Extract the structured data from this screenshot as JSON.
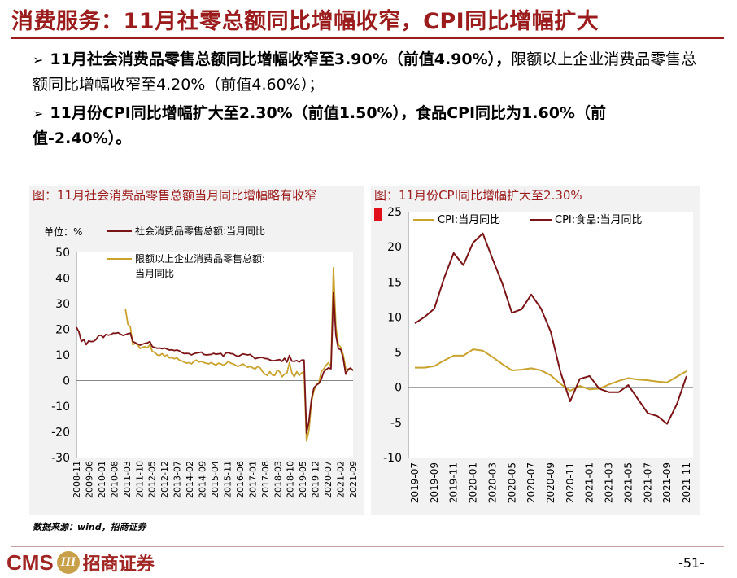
{
  "header": {
    "title": "消费服务：11月社零总额同比增幅收窄，CPI同比增幅扩大"
  },
  "bullets": [
    {
      "arrow": "➢",
      "bold": "11月社会消费品零售总额同比增幅收窄至3.90%（前值4.90%），",
      "normal": "限额以上企业消费品零售总额同比增幅收窄至4.20%（前值4.60%）；"
    },
    {
      "arrow": "➢",
      "bold": "11月份CPI同比增幅扩大至2.30%（前值1.50%），食品CPI同比为1.60%（前值-2.40%）。",
      "normal": ""
    }
  ],
  "chart_data": [
    {
      "type": "line",
      "title": "图：11月社会消费品零售总额当月同比增幅略有收窄",
      "unit_label": "单位：%",
      "ylim": [
        -30,
        50
      ],
      "yticks": [
        -30,
        -20,
        -10,
        0,
        10,
        20,
        30,
        40,
        50
      ],
      "xticks": [
        "2008-11",
        "2009-06",
        "2010-01",
        "2010-08",
        "2011-03",
        "2011-10",
        "2012-05",
        "2012-12",
        "2013-07",
        "2014-02",
        "2014-09",
        "2015-04",
        "2015-11",
        "2016-06",
        "2017-01",
        "2017-08",
        "2018-03",
        "2018-10",
        "2019-05",
        "2019-12",
        "2020-07",
        "2021-02",
        "2021-09"
      ],
      "series": [
        {
          "name": "社会消费品零售总额:当月同比",
          "color": "#7b1416",
          "points": [
            [
              0,
              20.8
            ],
            [
              1,
              19.0
            ],
            [
              2,
              15.2
            ],
            [
              3,
              16.0
            ],
            [
              4,
              14.0
            ],
            [
              5,
              15.5
            ],
            [
              6,
              15.2
            ],
            [
              7,
              15.3
            ],
            [
              8,
              16.0
            ],
            [
              9,
              17.5
            ],
            [
              10,
              17.7
            ],
            [
              11,
              16.8
            ],
            [
              12,
              18.0
            ],
            [
              13,
              17.7
            ],
            [
              14,
              17.9
            ],
            [
              15,
              18.5
            ],
            [
              16,
              18.4
            ],
            [
              17,
              18.7
            ],
            [
              18,
              18.1
            ],
            [
              19,
              17.6
            ],
            [
              20,
              17.9
            ],
            [
              21,
              18.3
            ],
            [
              22,
              18.5
            ],
            [
              23,
              15.2
            ],
            [
              24,
              14.8
            ],
            [
              25,
              14.3
            ],
            [
              26,
              13.8
            ],
            [
              27,
              14.2
            ],
            [
              28,
              14.5
            ],
            [
              29,
              14.7
            ],
            [
              30,
              15.2
            ],
            [
              31,
              13.2
            ],
            [
              32,
              12.9
            ],
            [
              33,
              12.6
            ],
            [
              34,
              12.7
            ],
            [
              35,
              12.4
            ],
            [
              36,
              12.7
            ],
            [
              37,
              12.3
            ],
            [
              38,
              11.9
            ],
            [
              39,
              12.0
            ],
            [
              40,
              11.7
            ],
            [
              41,
              11.9
            ],
            [
              42,
              11.6
            ],
            [
              43,
              11.0
            ],
            [
              44,
              10.5
            ],
            [
              45,
              10.6
            ],
            [
              46,
              10.5
            ],
            [
              47,
              10.0
            ],
            [
              48,
              10.5
            ],
            [
              49,
              10.7
            ],
            [
              50,
              10.9
            ],
            [
              51,
              11.1
            ],
            [
              52,
              10.2
            ],
            [
              53,
              10.0
            ],
            [
              54,
              10.1
            ],
            [
              55,
              10.2
            ],
            [
              56,
              10.6
            ],
            [
              57,
              10.3
            ],
            [
              58,
              10.4
            ],
            [
              59,
              10.6
            ],
            [
              60,
              9.5
            ],
            [
              61,
              10.7
            ],
            [
              62,
              10.9
            ],
            [
              63,
              10.5
            ],
            [
              64,
              10.4
            ],
            [
              65,
              9.8
            ],
            [
              66,
              9.4
            ],
            [
              67,
              9.9
            ],
            [
              68,
              10.4
            ],
            [
              69,
              10.2
            ],
            [
              70,
              10.0
            ],
            [
              71,
              10.2
            ],
            [
              72,
              9.4
            ],
            [
              73,
              8.5
            ],
            [
              74,
              8.8
            ],
            [
              75,
              9.0
            ],
            [
              76,
              9.0
            ],
            [
              77,
              8.6
            ],
            [
              78,
              8.5
            ],
            [
              79,
              8.1
            ],
            [
              80,
              7.7
            ],
            [
              81,
              7.8
            ],
            [
              82,
              8.0
            ],
            [
              83,
              8.2
            ],
            [
              84,
              7.5
            ],
            [
              85,
              8.7
            ],
            [
              86,
              7.2
            ],
            [
              87,
              9.8
            ],
            [
              88,
              7.6
            ],
            [
              89,
              7.5
            ],
            [
              90,
              7.8
            ],
            [
              91,
              7.2
            ],
            [
              92,
              8.0
            ],
            [
              93,
              8.0
            ],
            [
              94,
              -20.5
            ],
            [
              95,
              -15.8
            ],
            [
              96,
              -7.5
            ],
            [
              97,
              -2.8
            ],
            [
              98,
              -1.8
            ],
            [
              99,
              -1.1
            ],
            [
              100,
              0.5
            ],
            [
              101,
              3.3
            ],
            [
              102,
              4.3
            ],
            [
              103,
              5.0
            ],
            [
              104,
              4.6
            ],
            [
              105,
              34.2
            ],
            [
              106,
              17.7
            ],
            [
              107,
              12.4
            ],
            [
              108,
              12.1
            ],
            [
              109,
              8.5
            ],
            [
              110,
              2.5
            ],
            [
              111,
              4.4
            ],
            [
              112,
              4.9
            ],
            [
              113,
              3.9
            ]
          ]
        },
        {
          "name": "限额以上企业消费品零售总额:当月同比",
          "color": "#c9a32e",
          "points": [
            [
              20,
              28.0
            ],
            [
              21,
              22.0
            ],
            [
              22,
              21.0
            ],
            [
              23,
              14.0
            ],
            [
              24,
              14.5
            ],
            [
              25,
              14.0
            ],
            [
              26,
              12.5
            ],
            [
              27,
              13.0
            ],
            [
              28,
              13.2
            ],
            [
              29,
              12.8
            ],
            [
              30,
              14.0
            ],
            [
              31,
              11.3
            ],
            [
              32,
              11.0
            ],
            [
              33,
              10.0
            ],
            [
              34,
              9.8
            ],
            [
              35,
              10.5
            ],
            [
              36,
              9.5
            ],
            [
              37,
              10.0
            ],
            [
              38,
              8.8
            ],
            [
              39,
              9.0
            ],
            [
              40,
              8.5
            ],
            [
              41,
              8.9
            ],
            [
              42,
              8.0
            ],
            [
              43,
              7.7
            ],
            [
              44,
              7.2
            ],
            [
              45,
              6.8
            ],
            [
              46,
              7.0
            ],
            [
              47,
              6.5
            ],
            [
              48,
              7.5
            ],
            [
              49,
              8.0
            ],
            [
              50,
              7.2
            ],
            [
              51,
              7.5
            ],
            [
              52,
              7.0
            ],
            [
              53,
              6.8
            ],
            [
              54,
              6.5
            ],
            [
              55,
              7.0
            ],
            [
              56,
              6.5
            ],
            [
              57,
              6.0
            ],
            [
              58,
              6.8
            ],
            [
              59,
              6.5
            ],
            [
              60,
              6.0
            ],
            [
              61,
              6.5
            ],
            [
              62,
              7.5
            ],
            [
              63,
              6.8
            ],
            [
              64,
              6.5
            ],
            [
              65,
              6.0
            ],
            [
              66,
              5.5
            ],
            [
              67,
              6.0
            ],
            [
              68,
              6.5
            ],
            [
              69,
              5.8
            ],
            [
              70,
              5.2
            ],
            [
              71,
              5.5
            ],
            [
              72,
              5.0
            ],
            [
              73,
              4.5
            ],
            [
              74,
              5.5
            ],
            [
              75,
              5.0
            ],
            [
              76,
              3.5
            ],
            [
              77,
              2.5
            ],
            [
              78,
              2.0
            ],
            [
              79,
              3.5
            ],
            [
              80,
              2.2
            ],
            [
              81,
              2.0
            ],
            [
              82,
              4.0
            ],
            [
              83,
              3.5
            ],
            [
              84,
              1.5
            ],
            [
              85,
              2.5
            ],
            [
              86,
              3.0
            ],
            [
              87,
              7.0
            ],
            [
              88,
              3.0
            ],
            [
              89,
              1.5
            ],
            [
              90,
              3.5
            ],
            [
              91,
              2.0
            ],
            [
              92,
              3.0
            ],
            [
              93,
              3.5
            ],
            [
              94,
              -23.5
            ],
            [
              95,
              -19.5
            ],
            [
              96,
              -8.5
            ],
            [
              97,
              -4.0
            ],
            [
              98,
              -1.5
            ],
            [
              99,
              -1.0
            ],
            [
              100,
              3.5
            ],
            [
              101,
              4.5
            ],
            [
              102,
              6.0
            ],
            [
              103,
              7.0
            ],
            [
              104,
              5.2
            ],
            [
              105,
              44.0
            ],
            [
              106,
              21.0
            ],
            [
              107,
              14.0
            ],
            [
              108,
              13.0
            ],
            [
              109,
              10.0
            ],
            [
              110,
              4.5
            ],
            [
              111,
              4.0
            ],
            [
              112,
              4.6
            ],
            [
              113,
              4.2
            ]
          ]
        }
      ]
    },
    {
      "type": "line",
      "title": "图：11月份CPI同比增幅扩大至2.30%",
      "ylim": [
        -10,
        25
      ],
      "yticks": [
        -10,
        -5,
        0,
        5,
        10,
        15,
        20,
        25
      ],
      "xticks": [
        "2019-07",
        "2019-09",
        "2019-11",
        "2020-01",
        "2020-03",
        "2020-05",
        "2020-07",
        "2020-09",
        "2020-11",
        "2021-01",
        "2021-03",
        "2021-05",
        "2021-07",
        "2021-09",
        "2021-11"
      ],
      "x": [
        "2019-07",
        "2019-08",
        "2019-09",
        "2019-10",
        "2019-11",
        "2019-12",
        "2020-01",
        "2020-02",
        "2020-03",
        "2020-04",
        "2020-05",
        "2020-06",
        "2020-07",
        "2020-08",
        "2020-09",
        "2020-10",
        "2020-11",
        "2020-12",
        "2021-01",
        "2021-02",
        "2021-03",
        "2021-04",
        "2021-05",
        "2021-06",
        "2021-07",
        "2021-08",
        "2021-09",
        "2021-10",
        "2021-11"
      ],
      "series": [
        {
          "name": "CPI:当月同比",
          "color": "#c9a32e",
          "values": [
            2.8,
            2.8,
            3.0,
            3.8,
            4.5,
            4.5,
            5.4,
            5.2,
            4.3,
            3.3,
            2.4,
            2.5,
            2.7,
            2.4,
            1.7,
            0.5,
            -0.5,
            0.2,
            -0.3,
            -0.2,
            0.4,
            0.9,
            1.3,
            1.1,
            1.0,
            0.8,
            0.7,
            1.5,
            2.3
          ]
        },
        {
          "name": "CPI:食品:当月同比",
          "color": "#7b1416",
          "values": [
            9.1,
            10.0,
            11.2,
            15.5,
            19.1,
            17.4,
            20.6,
            21.9,
            18.3,
            14.8,
            10.6,
            11.1,
            13.2,
            11.2,
            7.9,
            2.2,
            -2.0,
            1.2,
            1.6,
            -0.2,
            -0.7,
            -0.7,
            0.3,
            -1.7,
            -3.7,
            -4.1,
            -5.2,
            -2.4,
            1.6
          ]
        }
      ]
    }
  ],
  "source": "数据来源：wind，招商证券",
  "footer": {
    "logo_en": "CMS",
    "logo_mark": "III",
    "logo_cn": "招商证券",
    "page": "-51-"
  }
}
